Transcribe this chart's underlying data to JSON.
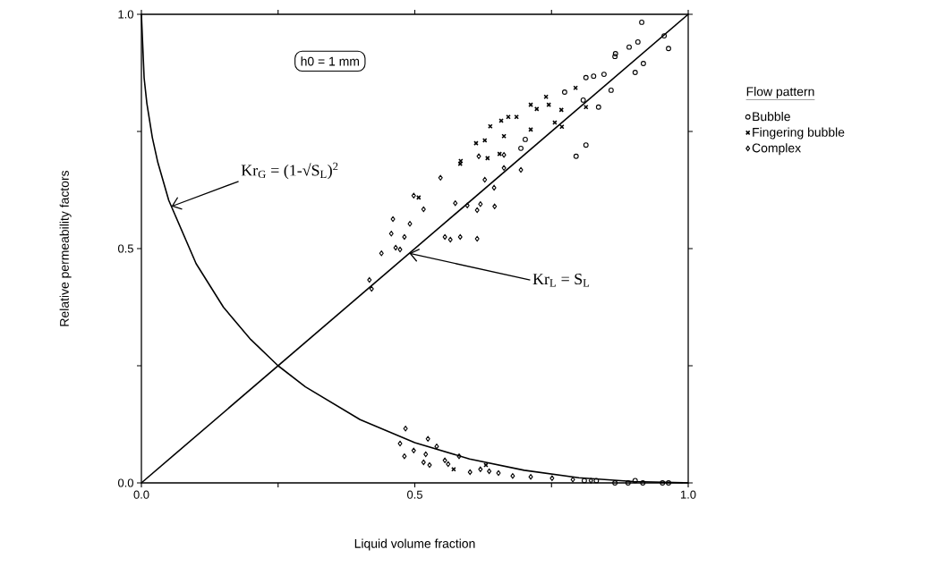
{
  "chart_data": {
    "type": "scatter",
    "xlabel": "Liquid volume fraction",
    "ylabel": "Relative permeability factors",
    "legend_title": "Flow pattern",
    "xlim": [
      0,
      1
    ],
    "ylim": [
      0,
      1
    ],
    "xticks": [
      {
        "value": 0,
        "label": "0.0"
      },
      {
        "value": 0.25,
        "label": null
      },
      {
        "value": 0.5,
        "label": "0.5"
      },
      {
        "value": 0.75,
        "label": null
      },
      {
        "value": 1,
        "label": "1.0"
      }
    ],
    "yticks": [
      {
        "value": 0,
        "label": "0.0"
      },
      {
        "value": 0.25,
        "label": null
      },
      {
        "value": 0.5,
        "label": "0.5"
      },
      {
        "value": 0.75,
        "label": null
      },
      {
        "value": 1,
        "label": "1.0"
      }
    ],
    "grid": false,
    "legend": "right",
    "annotations": [
      "h0 = 1 mm",
      {
        "text": "Kr$_{G}$ = (1-√S$_{L}$)$^{2}$",
        "x": 0.055,
        "y": 0.59
      },
      {
        "text": "Kr$_{L}$ = S$_{L}$",
        "x": 0.49,
        "y": 0.49
      }
    ],
    "series": [
      {
        "name": "Bubble",
        "marker": "circle",
        "color": "#000000",
        "x": [
          0.915,
          0.956,
          0.964,
          0.908,
          0.892,
          0.866,
          0.867,
          0.918,
          0.903,
          0.813,
          0.827,
          0.846,
          0.859,
          0.774,
          0.808,
          0.836,
          0.813,
          0.795,
          0.702,
          0.694,
          0.866,
          0.89,
          0.903,
          0.917,
          0.953,
          0.964,
          0.81,
          0.832
        ],
        "values": [
          0.983,
          0.954,
          0.927,
          0.941,
          0.93,
          0.91,
          0.916,
          0.895,
          0.876,
          0.865,
          0.868,
          0.872,
          0.838,
          0.834,
          0.817,
          0.802,
          0.721,
          0.697,
          0.733,
          0.714,
          0,
          0,
          0.005,
          0,
          0,
          0,
          0.005,
          0.005
        ]
      },
      {
        "name": "Fingering bubble",
        "marker": "cross",
        "color": "#000000",
        "x": [
          0.794,
          0.813,
          0.74,
          0.712,
          0.723,
          0.745,
          0.768,
          0.756,
          0.769,
          0.686,
          0.671,
          0.658,
          0.638,
          0.663,
          0.628,
          0.612,
          0.712,
          0.655,
          0.633,
          0.584,
          0.583,
          0.507,
          0.571,
          0.63
        ],
        "values": [
          0.843,
          0.802,
          0.824,
          0.807,
          0.798,
          0.807,
          0.796,
          0.769,
          0.76,
          0.781,
          0.781,
          0.773,
          0.761,
          0.74,
          0.731,
          0.725,
          0.754,
          0.702,
          0.693,
          0.687,
          0.681,
          0.609,
          0.029,
          0.038
        ]
      },
      {
        "name": "Complex",
        "marker": "diamond",
        "color": "#000000",
        "x": [
          0.547,
          0.498,
          0.516,
          0.46,
          0.491,
          0.457,
          0.481,
          0.465,
          0.473,
          0.439,
          0.617,
          0.663,
          0.663,
          0.694,
          0.628,
          0.645,
          0.574,
          0.596,
          0.62,
          0.614,
          0.646,
          0.555,
          0.565,
          0.583,
          0.614,
          0.417,
          0.421,
          0.483,
          0.473,
          0.481,
          0.498,
          0.52,
          0.524,
          0.54,
          0.516,
          0.527,
          0.555,
          0.561,
          0.581,
          0.601,
          0.62,
          0.636,
          0.653,
          0.679,
          0.712,
          0.751,
          0.789,
          0.822
        ],
        "values": [
          0.651,
          0.613,
          0.584,
          0.563,
          0.553,
          0.532,
          0.525,
          0.502,
          0.498,
          0.49,
          0.697,
          0.7,
          0.672,
          0.668,
          0.647,
          0.63,
          0.597,
          0.592,
          0.595,
          0.582,
          0.59,
          0.525,
          0.519,
          0.525,
          0.521,
          0.433,
          0.414,
          0.116,
          0.084,
          0.057,
          0.069,
          0.061,
          0.094,
          0.078,
          0.044,
          0.038,
          0.048,
          0.04,
          0.057,
          0.023,
          0.029,
          0.025,
          0.021,
          0.015,
          0.013,
          0.01,
          0.007,
          0.005
        ]
      },
      {
        "type": "line",
        "marker": "none",
        "color": "#000000",
        "x": [
          0,
          1
        ],
        "values": [
          0,
          1
        ]
      },
      {
        "type": "line",
        "marker": "none",
        "color": "#000000",
        "x": [
          0,
          0.005,
          0.01,
          0.02,
          0.03,
          0.05,
          0.1,
          0.15,
          0.2,
          0.25,
          0.3,
          0.4,
          0.5,
          0.6,
          0.7,
          0.8,
          0.9,
          1
        ],
        "values": [
          1,
          0.864,
          0.81,
          0.737,
          0.684,
          0.603,
          0.468,
          0.375,
          0.306,
          0.25,
          0.205,
          0.135,
          0.086,
          0.051,
          0.027,
          0.011,
          0.003,
          0
        ]
      }
    ]
  }
}
